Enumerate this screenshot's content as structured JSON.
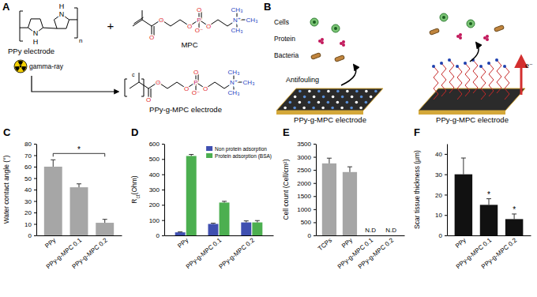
{
  "diagram": {
    "A": {
      "label": "A",
      "ppy_atoms": [
        "N",
        "H",
        "N",
        "H"
      ],
      "repeat": "n",
      "plus": "+",
      "mpc_atoms": [
        "O",
        "O",
        "O",
        "P",
        "O",
        "O⁻",
        "O",
        "N⁺",
        "CH₃",
        "CH₃",
        "CH₃"
      ],
      "ppy_label": "PPy electrode",
      "mpc_label": "MPC",
      "radiation_label": "gamma-ray",
      "product_atoms": [
        "O",
        "O",
        "O",
        "P",
        "O",
        "O⁻",
        "O",
        "N⁺",
        "CH₃",
        "CH₃",
        "CH₃"
      ],
      "product_mark": "c",
      "product_label": "PPy-g-MPC electrode"
    },
    "B": {
      "label": "B",
      "species": [
        "Cells",
        "Protein",
        "Bacteria"
      ],
      "action": "Antifouling",
      "electron": "e⁻",
      "electrode_labels": [
        "PPy-g-MPC electrode",
        "PPy-g-MPC electrode"
      ]
    }
  },
  "chart_data": [
    {
      "type": "bar",
      "title": "C",
      "ylabel": "Water contact angle (°)",
      "categories": [
        "PPy",
        "PPy-g-MPC 0.1",
        "PPy-g-MPC 0.2"
      ],
      "values": [
        60,
        42,
        11
      ],
      "errors": [
        6,
        3,
        3
      ],
      "color": "#a6a6a6",
      "ylim": [
        0,
        80
      ],
      "yticks": [
        0,
        10,
        20,
        30,
        40,
        50,
        60,
        70,
        80
      ],
      "annotations": [
        {
          "text": "*",
          "from": "PPy",
          "to": "PPy-g-MPC 0.2"
        }
      ]
    },
    {
      "type": "bar",
      "title": "D",
      "ylabel": "Rct(Ohm)",
      "categories": [
        "PPy",
        "PPy-g-MPC 0.1",
        "PPy-g-MPC 0.2"
      ],
      "series": [
        {
          "name": "Non protein adsorption",
          "color": "#3f4fb0",
          "values": [
            20,
            75,
            85
          ],
          "errors": [
            3,
            5,
            10
          ]
        },
        {
          "name": "Protein adsorption (BSA)",
          "color": "#4caf50",
          "values": [
            520,
            215,
            85
          ],
          "errors": [
            10,
            8,
            12
          ]
        }
      ],
      "legend": "upper right",
      "ylim": [
        0,
        600
      ],
      "yticks": [
        0,
        100,
        200,
        300,
        400,
        500,
        600
      ]
    },
    {
      "type": "bar",
      "title": "E",
      "ylabel": "Cell count (Cell/cm²)",
      "categories": [
        "TCPs",
        "PPy",
        "PPy-g-MPC 0.1",
        "PPy-g-MPC 0.2"
      ],
      "values": [
        2750,
        2420,
        null,
        null
      ],
      "errors": [
        200,
        200,
        null,
        null
      ],
      "value_labels": [
        null,
        null,
        "N.D",
        "N.D"
      ],
      "color": "#a6a6a6",
      "ylim": [
        0,
        3500
      ],
      "yticks": [
        0,
        500,
        1000,
        1500,
        2000,
        2500,
        3000,
        3500
      ]
    },
    {
      "type": "bar",
      "title": "F",
      "ylabel": "Scar tissue thickness (μm)",
      "categories": [
        "PPy",
        "PPy-g-MPC 0.1",
        "PPy-g-MPC 0.2"
      ],
      "values": [
        30,
        15,
        8
      ],
      "errors": [
        8,
        3,
        2.5
      ],
      "color": "#111111",
      "ylim": [
        0,
        45
      ],
      "yticks": [
        0,
        10,
        20,
        30,
        40
      ],
      "annotations": [
        {
          "text": "*",
          "at": "PPy-g-MPC 0.1"
        },
        {
          "text": "*",
          "at": "PPy-g-MPC 0.2"
        }
      ]
    }
  ]
}
